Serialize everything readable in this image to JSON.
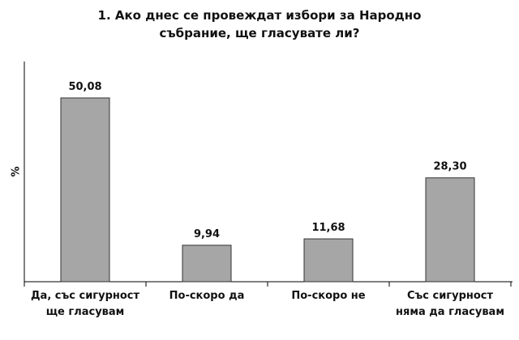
{
  "chart_data": {
    "type": "bar",
    "title": "1. Ако днес се провеждат избори за Народно събрание, ще гласувате ли?",
    "y_label": "%",
    "categories": [
      "Да, със сигурност ще гласувам",
      "По-скоро да",
      "По-скоро не",
      "Със сигурност няма да гласувам"
    ],
    "values": [
      50.08,
      9.94,
      11.68,
      28.3
    ],
    "value_labels": [
      "50,08",
      "9,94",
      "11,68",
      "28,30"
    ],
    "color": "#a6a6a6",
    "ylim": [
      0,
      60
    ]
  }
}
